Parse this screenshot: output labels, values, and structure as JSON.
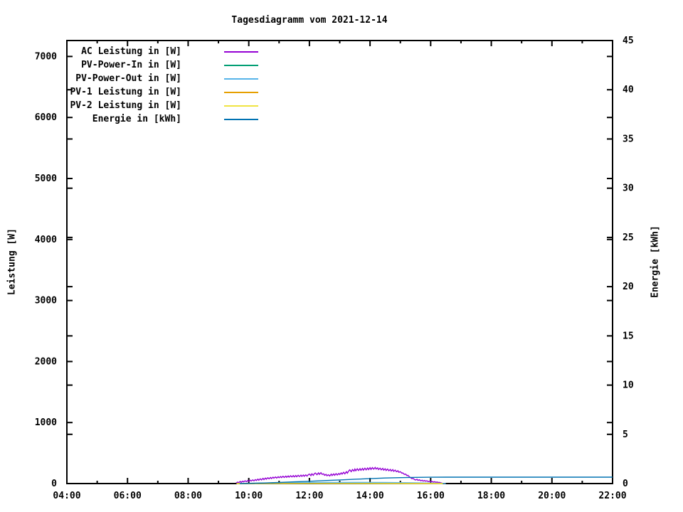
{
  "title": "Tagesdiagramm vom 2021-12-14",
  "axes": {
    "left_label": "Leistung [W]",
    "right_label": "Energie [kWh]"
  },
  "chart_data": {
    "type": "line",
    "title": "Tagesdiagramm vom 2021-12-14",
    "grid": false,
    "legend_position": "top-left-inside",
    "x_axis": {
      "unit": "time",
      "range_hours": [
        4,
        22
      ],
      "major_tick_step_hours": 2,
      "minor_tick_step_hours": 1,
      "tick_labels": [
        "04:00",
        "06:00",
        "08:00",
        "10:00",
        "12:00",
        "14:00",
        "16:00",
        "18:00",
        "20:00",
        "22:00"
      ]
    },
    "y_left": {
      "label": "Leistung [W]",
      "range": [
        0,
        7261
      ],
      "tick_step": 1000,
      "tick_labels": [
        "0",
        "1000",
        "2000",
        "3000",
        "4000",
        "5000",
        "6000",
        "7000"
      ]
    },
    "y_right": {
      "label": "Energie [kWh]",
      "range": [
        0,
        45
      ],
      "tick_step": 5,
      "tick_labels": [
        "0",
        "5",
        "10",
        "15",
        "20",
        "25",
        "30",
        "35",
        "40",
        "45"
      ]
    },
    "series": [
      {
        "name": "AC Leistung in [W]",
        "color": "#9400d3",
        "axis": "left",
        "points": [
          [
            9.58,
            8
          ],
          [
            9.63,
            25
          ],
          [
            9.67,
            15
          ],
          [
            9.72,
            35
          ],
          [
            9.75,
            20
          ],
          [
            9.8,
            40
          ],
          [
            9.83,
            28
          ],
          [
            9.88,
            45
          ],
          [
            9.92,
            30
          ],
          [
            9.97,
            50
          ],
          [
            10.0,
            38
          ],
          [
            10.05,
            55
          ],
          [
            10.08,
            42
          ],
          [
            10.13,
            60
          ],
          [
            10.17,
            45
          ],
          [
            10.22,
            65
          ],
          [
            10.25,
            50
          ],
          [
            10.3,
            72
          ],
          [
            10.33,
            55
          ],
          [
            10.38,
            78
          ],
          [
            10.42,
            60
          ],
          [
            10.47,
            85
          ],
          [
            10.5,
            65
          ],
          [
            10.55,
            90
          ],
          [
            10.58,
            72
          ],
          [
            10.63,
            95
          ],
          [
            10.67,
            78
          ],
          [
            10.72,
            100
          ],
          [
            10.75,
            82
          ],
          [
            10.8,
            105
          ],
          [
            10.83,
            88
          ],
          [
            10.88,
            108
          ],
          [
            10.92,
            90
          ],
          [
            10.97,
            112
          ],
          [
            11.0,
            95
          ],
          [
            11.05,
            115
          ],
          [
            11.08,
            98
          ],
          [
            11.13,
            120
          ],
          [
            11.17,
            100
          ],
          [
            11.22,
            122
          ],
          [
            11.25,
            103
          ],
          [
            11.3,
            125
          ],
          [
            11.33,
            105
          ],
          [
            11.38,
            128
          ],
          [
            11.42,
            108
          ],
          [
            11.47,
            130
          ],
          [
            11.5,
            110
          ],
          [
            11.55,
            132
          ],
          [
            11.58,
            112
          ],
          [
            11.63,
            135
          ],
          [
            11.67,
            115
          ],
          [
            11.72,
            138
          ],
          [
            11.75,
            118
          ],
          [
            11.8,
            140
          ],
          [
            11.83,
            120
          ],
          [
            11.88,
            142
          ],
          [
            11.92,
            122
          ],
          [
            11.97,
            148
          ],
          [
            12.0,
            155
          ],
          [
            12.05,
            130
          ],
          [
            12.08,
            160
          ],
          [
            12.13,
            135
          ],
          [
            12.17,
            165
          ],
          [
            12.2,
            172
          ],
          [
            12.25,
            145
          ],
          [
            12.3,
            175
          ],
          [
            12.33,
            150
          ],
          [
            12.38,
            178
          ],
          [
            12.42,
            152
          ],
          [
            12.47,
            160
          ],
          [
            12.5,
            135
          ],
          [
            12.55,
            150
          ],
          [
            12.58,
            128
          ],
          [
            12.63,
            145
          ],
          [
            12.67,
            125
          ],
          [
            12.72,
            155
          ],
          [
            12.75,
            132
          ],
          [
            12.8,
            158
          ],
          [
            12.83,
            135
          ],
          [
            12.88,
            162
          ],
          [
            12.92,
            140
          ],
          [
            12.97,
            165
          ],
          [
            13.0,
            148
          ],
          [
            13.05,
            175
          ],
          [
            13.08,
            155
          ],
          [
            13.13,
            185
          ],
          [
            13.17,
            160
          ],
          [
            13.22,
            195
          ],
          [
            13.25,
            170
          ],
          [
            13.3,
            210
          ],
          [
            13.33,
            225
          ],
          [
            13.38,
            195
          ],
          [
            13.42,
            230
          ],
          [
            13.47,
            205
          ],
          [
            13.5,
            238
          ],
          [
            13.53,
            210
          ],
          [
            13.58,
            242
          ],
          [
            13.62,
            215
          ],
          [
            13.67,
            245
          ],
          [
            13.7,
            218
          ],
          [
            13.75,
            248
          ],
          [
            13.78,
            220
          ],
          [
            13.83,
            252
          ],
          [
            13.87,
            225
          ],
          [
            13.92,
            255
          ],
          [
            13.95,
            228
          ],
          [
            14.0,
            260
          ],
          [
            14.03,
            232
          ],
          [
            14.08,
            262
          ],
          [
            14.12,
            235
          ],
          [
            14.17,
            265
          ],
          [
            14.2,
            238
          ],
          [
            14.25,
            258
          ],
          [
            14.28,
            230
          ],
          [
            14.33,
            252
          ],
          [
            14.37,
            225
          ],
          [
            14.42,
            248
          ],
          [
            14.45,
            220
          ],
          [
            14.5,
            242
          ],
          [
            14.53,
            215
          ],
          [
            14.58,
            238
          ],
          [
            14.62,
            210
          ],
          [
            14.67,
            232
          ],
          [
            14.7,
            205
          ],
          [
            14.75,
            228
          ],
          [
            14.78,
            200
          ],
          [
            14.83,
            220
          ],
          [
            14.87,
            195
          ],
          [
            14.92,
            210
          ],
          [
            14.95,
            185
          ],
          [
            15.0,
            195
          ],
          [
            15.05,
            170
          ],
          [
            15.08,
            175
          ],
          [
            15.13,
            150
          ],
          [
            15.17,
            155
          ],
          [
            15.22,
            130
          ],
          [
            15.25,
            135
          ],
          [
            15.3,
            110
          ],
          [
            15.33,
            100
          ],
          [
            15.38,
            80
          ],
          [
            15.42,
            85
          ],
          [
            15.47,
            65
          ],
          [
            15.5,
            58
          ],
          [
            15.55,
            70
          ],
          [
            15.58,
            52
          ],
          [
            15.63,
            62
          ],
          [
            15.67,
            45
          ],
          [
            15.72,
            55
          ],
          [
            15.75,
            40
          ],
          [
            15.8,
            50
          ],
          [
            15.83,
            38
          ],
          [
            15.88,
            45
          ],
          [
            15.92,
            32
          ],
          [
            15.97,
            40
          ],
          [
            16.0,
            30
          ],
          [
            16.05,
            35
          ],
          [
            16.08,
            25
          ],
          [
            16.13,
            30
          ],
          [
            16.17,
            22
          ],
          [
            16.22,
            25
          ],
          [
            16.25,
            18
          ],
          [
            16.3,
            20
          ],
          [
            16.33,
            12
          ],
          [
            16.38,
            8
          ]
        ]
      },
      {
        "name": "PV-Power-In in [W]",
        "color": "#009e73",
        "axis": "left",
        "points": [
          [
            9.6,
            0
          ],
          [
            10.5,
            6
          ],
          [
            12.0,
            8
          ],
          [
            14.0,
            9
          ],
          [
            15.5,
            6
          ],
          [
            16.4,
            0
          ]
        ]
      },
      {
        "name": "PV-Power-Out in [W]",
        "color": "#56b4e9",
        "axis": "left",
        "points": [
          [
            10.2,
            0
          ],
          [
            10.75,
            12
          ],
          [
            11.5,
            15
          ],
          [
            12.5,
            18
          ],
          [
            13.5,
            20
          ],
          [
            14.5,
            18
          ],
          [
            15.5,
            12
          ],
          [
            16.3,
            5
          ],
          [
            16.5,
            0
          ]
        ]
      },
      {
        "name": "PV-1 Leistung in [W]",
        "color": "#e69f00",
        "axis": "left",
        "points": [
          [
            9.6,
            0
          ],
          [
            12.0,
            3
          ],
          [
            16.4,
            0
          ]
        ]
      },
      {
        "name": "PV-2 Leistung in [W]",
        "color": "#f0e442",
        "axis": "left",
        "points": [
          [
            9.6,
            0
          ],
          [
            12.0,
            2
          ],
          [
            16.4,
            0
          ]
        ]
      },
      {
        "name": "Energie in [kWh]",
        "color": "#0072b2",
        "axis": "right",
        "points": [
          [
            9.7,
            0
          ],
          [
            10.0,
            0.02
          ],
          [
            10.5,
            0.06
          ],
          [
            11.0,
            0.11
          ],
          [
            11.5,
            0.17
          ],
          [
            12.0,
            0.23
          ],
          [
            12.5,
            0.3
          ],
          [
            13.0,
            0.37
          ],
          [
            13.5,
            0.44
          ],
          [
            14.0,
            0.5
          ],
          [
            14.5,
            0.56
          ],
          [
            15.0,
            0.6
          ],
          [
            15.5,
            0.63
          ],
          [
            16.0,
            0.645
          ],
          [
            16.5,
            0.65
          ],
          [
            22.0,
            0.65
          ]
        ]
      }
    ]
  }
}
